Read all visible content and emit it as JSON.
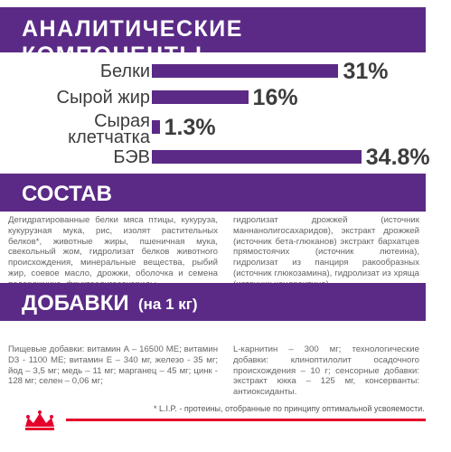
{
  "sections": {
    "analytics_title": "АНАЛИТИЧЕСКИЕ КОМПОНЕНТЫ",
    "composition_title": "СОСТАВ",
    "additives_title": "ДОБАВКИ",
    "additives_unit": "(на 1 кг)"
  },
  "chart_data": {
    "type": "bar",
    "categories": [
      "Белки",
      "Сырой жир",
      "Сырая клетчатка",
      "БЭВ"
    ],
    "values": [
      31,
      16,
      1.3,
      34.8
    ],
    "labels": [
      "31%",
      "16%",
      "1.3%",
      "34.8%"
    ]
  },
  "rows": [
    {
      "label_lines": [
        "Белки"
      ],
      "pct": "31%"
    },
    {
      "label_lines": [
        "Сырой жир"
      ],
      "pct": "16%"
    },
    {
      "label_lines": [
        "Сырая",
        "клетчатка"
      ],
      "pct": "1.3%"
    },
    {
      "label_lines": [
        "БЭВ"
      ],
      "pct": "34.8%"
    }
  ],
  "composition": {
    "left": "Дегидратированные белки мяса птицы, кукуруза, кукурузная мука, рис, изолят растительных белков*, животные жиры, пшеничная мука, свекольный жом, гидролизат белков животного происхождения, минеральные вещества, рыбий жир, соевое масло, дрожжи, оболочка и семена подорожника, фруктоолигосахариды,",
    "right": "гидролизат дрожжей (источник маннанолигосахаридов), экстракт дрожжей (источник бета-глюканов) экстракт бархатцев прямостоячих (источник лютеина), гидролизат из панциря ракообразных (источник глюкозамина), гидролизат из хряща (источник хондроитина)."
  },
  "additives": {
    "left": "Пищевые добавки: витамин А – 16500 МЕ; витамин D3 - 1100 МЕ; витамин Е – 340 мг, железо - 35 мг; йод – 3,5 мг; медь – 11 мг; марганец – 45 мг; цинк - 128 мг; селен – 0,06 мг;",
    "right": "L-карнитин – 300 мг; технологические добавки: клиноптилолит осадочного происхождения – 10 г; сенсорные добавки: экстракт юкка – 125 мг, консерванты: антиоксиданты."
  },
  "footnote": "* L.I.P. - протеины, отобранные по принципу оптимальной усвояемости.",
  "colors": {
    "brand_purple": "#5b2a86",
    "brand_red": "#e4002b"
  },
  "logo": {
    "icon": "royal-canin-crown-icon"
  }
}
